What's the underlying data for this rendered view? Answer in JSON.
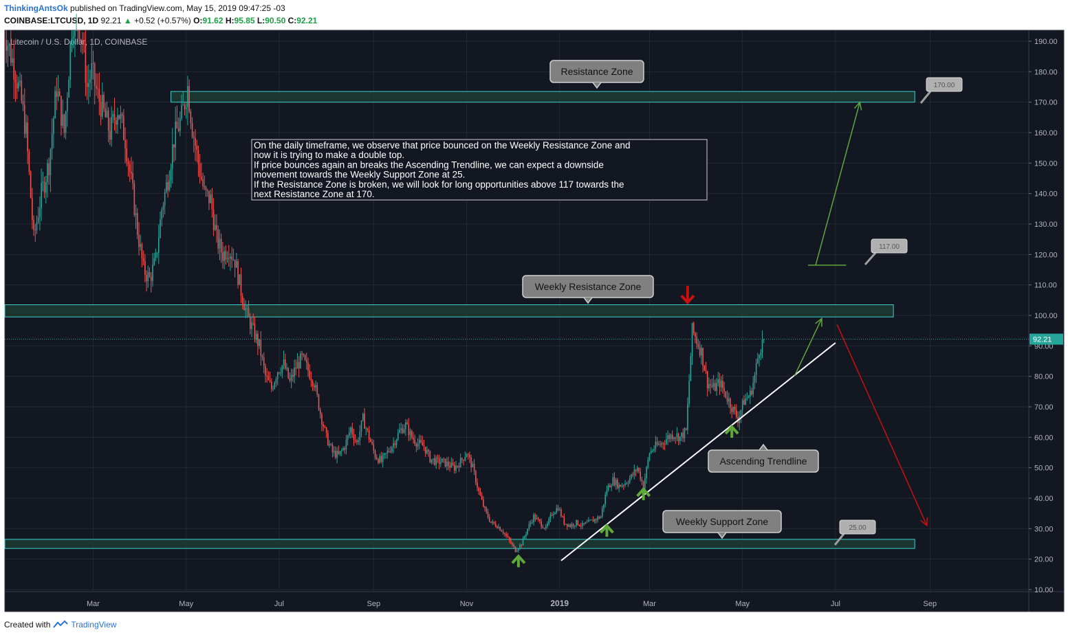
{
  "header": {
    "author": "ThinkingAntsOk",
    "published": "published on TradingView.com, May 15, 2019 09:47:25 -03",
    "symbol": "COINBASE:LTCUSD, 1D",
    "last": "92.21",
    "change": "+0.52 (+0.57%)",
    "open_label": "O:",
    "open": "91.62",
    "high_label": "H:",
    "high": "95.85",
    "low_label": "L:",
    "low": "90.50",
    "close_label": "C:",
    "close": "92.21"
  },
  "footer": {
    "created_with": "Created with",
    "brand": "TradingView"
  },
  "colors": {
    "background": "#131722",
    "up": "#26a69a",
    "down": "#ef5350",
    "zone_border": "#40d0d0",
    "zone_fill": "#1d3b34",
    "green_arrow": "#5fa83a",
    "red_arrow": "#c81010",
    "trendline": "#ffffff",
    "brand": "#2a72d4"
  },
  "chart_data": {
    "type": "candlestick",
    "title": "Litecoin / U.S. Dollar, 1D, COINBASE",
    "ylim": [
      10,
      192
    ],
    "y_ticks": [
      "190.00",
      "180.00",
      "170.00",
      "160.00",
      "150.00",
      "140.00",
      "130.00",
      "120.00",
      "110.00",
      "100.00",
      "90.00",
      "80.00",
      "70.00",
      "60.00",
      "50.00",
      "40.00",
      "30.00",
      "20.00",
      "10.00"
    ],
    "y_tick_values": [
      190,
      180,
      170,
      160,
      150,
      140,
      130,
      120,
      110,
      100,
      90,
      80,
      70,
      60,
      50,
      40,
      30,
      20,
      10
    ],
    "x_ticks": [
      "Mar",
      "May",
      "Jul",
      "Sep",
      "Nov",
      "2019",
      "Mar",
      "May",
      "Jul",
      "Sep"
    ],
    "x_tick_days": [
      59,
      120,
      181,
      243,
      304,
      365,
      424,
      485,
      546,
      608
    ],
    "x_range_days": [
      0,
      665
    ],
    "price_points": [
      [
        0,
        195
      ],
      [
        8,
        180
      ],
      [
        12,
        170
      ],
      [
        15,
        160
      ],
      [
        20,
        125
      ],
      [
        25,
        140
      ],
      [
        30,
        150
      ],
      [
        35,
        175
      ],
      [
        40,
        160
      ],
      [
        45,
        195
      ],
      [
        48,
        200
      ],
      [
        52,
        190
      ],
      [
        55,
        175
      ],
      [
        58,
        180
      ],
      [
        62,
        172
      ],
      [
        65,
        168
      ],
      [
        70,
        160
      ],
      [
        75,
        168
      ],
      [
        80,
        158
      ],
      [
        85,
        140
      ],
      [
        88,
        128
      ],
      [
        92,
        115
      ],
      [
        96,
        112
      ],
      [
        100,
        118
      ],
      [
        104,
        135
      ],
      [
        108,
        145
      ],
      [
        112,
        158
      ],
      [
        117,
        165
      ],
      [
        121,
        175
      ],
      [
        124,
        162
      ],
      [
        128,
        150
      ],
      [
        132,
        140
      ],
      [
        136,
        138
      ],
      [
        140,
        125
      ],
      [
        144,
        120
      ],
      [
        148,
        122
      ],
      [
        152,
        118
      ],
      [
        156,
        108
      ],
      [
        160,
        100
      ],
      [
        164,
        95
      ],
      [
        168,
        90
      ],
      [
        172,
        80
      ],
      [
        176,
        76
      ],
      [
        180,
        82
      ],
      [
        184,
        84
      ],
      [
        188,
        78
      ],
      [
        192,
        83
      ],
      [
        196,
        86
      ],
      [
        200,
        82
      ],
      [
        204,
        78
      ],
      [
        208,
        68
      ],
      [
        212,
        60
      ],
      [
        216,
        55
      ],
      [
        220,
        54
      ],
      [
        224,
        57
      ],
      [
        228,
        63
      ],
      [
        232,
        58
      ],
      [
        236,
        66
      ],
      [
        240,
        60
      ],
      [
        244,
        54
      ],
      [
        248,
        52
      ],
      [
        252,
        55
      ],
      [
        256,
        58
      ],
      [
        260,
        62
      ],
      [
        264,
        64
      ],
      [
        268,
        60
      ],
      [
        272,
        58
      ],
      [
        276,
        57
      ],
      [
        280,
        53
      ],
      [
        284,
        52
      ],
      [
        288,
        52
      ],
      [
        292,
        51
      ],
      [
        296,
        50
      ],
      [
        300,
        52
      ],
      [
        304,
        55
      ],
      [
        308,
        50
      ],
      [
        312,
        42
      ],
      [
        316,
        36
      ],
      [
        320,
        32
      ],
      [
        324,
        31
      ],
      [
        328,
        29
      ],
      [
        332,
        26
      ],
      [
        336,
        23
      ],
      [
        340,
        25
      ],
      [
        344,
        30
      ],
      [
        348,
        34
      ],
      [
        352,
        32
      ],
      [
        356,
        30
      ],
      [
        360,
        35
      ],
      [
        364,
        37
      ],
      [
        368,
        32
      ],
      [
        372,
        31
      ],
      [
        376,
        32
      ],
      [
        380,
        31
      ],
      [
        384,
        32
      ],
      [
        388,
        33
      ],
      [
        392,
        34
      ],
      [
        396,
        43
      ],
      [
        400,
        46
      ],
      [
        404,
        44
      ],
      [
        408,
        45
      ],
      [
        412,
        47
      ],
      [
        416,
        50
      ],
      [
        420,
        44
      ],
      [
        424,
        55
      ],
      [
        428,
        57
      ],
      [
        432,
        58
      ],
      [
        436,
        60
      ],
      [
        440,
        61
      ],
      [
        444,
        60
      ],
      [
        448,
        62
      ],
      [
        452,
        95
      ],
      [
        454,
        93
      ],
      [
        458,
        88
      ],
      [
        462,
        78
      ],
      [
        466,
        76
      ],
      [
        470,
        78
      ],
      [
        474,
        74
      ],
      [
        478,
        70
      ],
      [
        482,
        66
      ],
      [
        486,
        72
      ],
      [
        490,
        74
      ],
      [
        493,
        80
      ],
      [
        496,
        89
      ],
      [
        499,
        92.21
      ]
    ],
    "zones": [
      {
        "name": "Resistance Zone",
        "low": 170,
        "high": 173.5,
        "x_start_day": 110,
        "x_end_day": 598
      },
      {
        "name": "Weekly Resistance Zone",
        "low": 99.5,
        "high": 103.5,
        "x_start_day": 0,
        "x_end_day": 584
      },
      {
        "name": "Weekly Support Zone",
        "low": 23.5,
        "high": 26.5,
        "x_start_day": 0,
        "x_end_day": 598
      }
    ],
    "trendline": {
      "name": "Ascending Trendline",
      "points": [
        [
          366,
          19.5
        ],
        [
          546,
          91
        ]
      ]
    },
    "price_labels": [
      "170.00",
      "117.00",
      "25.00"
    ],
    "last_price": "92.21",
    "annotation": [
      "On the daily timeframe, we observe that price bounced on the Weekly Resistance Zone and",
      "now it is trying to make a double top.",
      "If price bounces again an breaks the Ascending Trendline, we can expect a downside",
      "movement towards the Weekly Support Zone at 25.",
      "If the Resistance Zone is broken, we will look for long opportunities above 117 towards the",
      "next Resistance Zone at 170."
    ]
  }
}
